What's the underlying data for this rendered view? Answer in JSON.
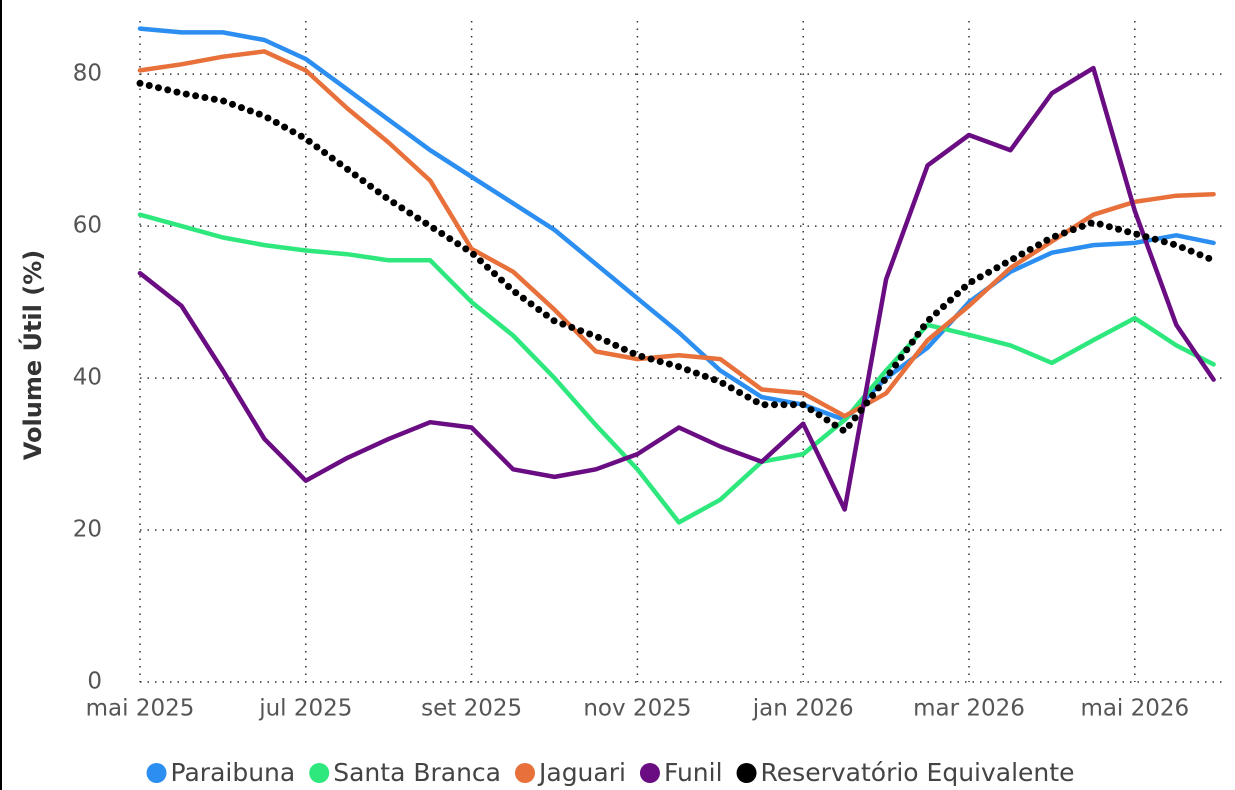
{
  "chart_data": {
    "type": "line",
    "y_label": "Volume Útil (%)",
    "x": [
      0,
      0.5,
      1,
      1.5,
      2,
      2.5,
      3,
      3.5,
      4,
      4.5,
      5,
      5.5,
      6,
      6.5,
      7,
      7.5,
      8,
      8.5,
      9,
      9.5,
      10,
      10.5,
      11,
      11.5,
      12,
      12.5,
      12.95
    ],
    "series": [
      {
        "name": "Paraibuna",
        "color": "#2b8ef0",
        "values": [
          86,
          85.5,
          85.5,
          84.5,
          82,
          78,
          74,
          70,
          66.5,
          63,
          59.5,
          55,
          50.5,
          46,
          41,
          37.5,
          36.5,
          34.5,
          40,
          44,
          50,
          54,
          56.5,
          57.5,
          57.8,
          58.8,
          57.8
        ]
      },
      {
        "name": "Santa Branca",
        "color": "#2ee87e",
        "values": [
          61.5,
          60,
          58.5,
          57.5,
          56.8,
          56.3,
          55.5,
          55.5,
          50,
          45.6,
          40,
          33.8,
          28,
          21,
          24,
          29,
          30,
          34.5,
          41,
          47,
          45.7,
          44.3,
          42,
          45,
          47.9,
          44.3,
          41.8
        ]
      },
      {
        "name": "Jaguari",
        "color": "#e8703a",
        "values": [
          80.5,
          81.3,
          82.3,
          83,
          80.5,
          75.5,
          71,
          66,
          57,
          54,
          49,
          43.5,
          42.5,
          43,
          42.5,
          38.5,
          38,
          35,
          38,
          45,
          49.5,
          54.5,
          58,
          61.5,
          63.2,
          64,
          64.2
        ]
      },
      {
        "name": "Funil",
        "color": "#6a0d83",
        "values": [
          53.8,
          49.5,
          41,
          32,
          26.5,
          29.5,
          32,
          34.2,
          33.5,
          28,
          27,
          28,
          30,
          33.5,
          31,
          29,
          34,
          22.7,
          53,
          68,
          72,
          70,
          77.5,
          80.8,
          62,
          47,
          39.8
        ]
      },
      {
        "name": "Reservatório Equivalente",
        "color": "#000000",
        "dotted": true,
        "values": [
          78.8,
          77.5,
          76.5,
          74.5,
          71.5,
          67.5,
          63.5,
          60,
          56.5,
          51.5,
          47.5,
          45.5,
          43,
          41.5,
          39.5,
          36.5,
          36.5,
          33,
          40,
          47.5,
          52.5,
          55.5,
          58.5,
          60.5,
          59,
          57.5,
          55.5
        ]
      }
    ],
    "xlim": [
      -0.25,
      13.1
    ],
    "xticks": [
      {
        "value": 0,
        "label": "mai 2025"
      },
      {
        "value": 2,
        "label": "jul 2025"
      },
      {
        "value": 4,
        "label": "set 2025"
      },
      {
        "value": 6,
        "label": "nov 2025"
      },
      {
        "value": 8,
        "label": "jan 2026"
      },
      {
        "value": 10,
        "label": "mar 2026"
      },
      {
        "value": 12,
        "label": "mai 2026"
      }
    ],
    "ylim": [
      0,
      87
    ],
    "yticks": [
      0,
      20,
      40,
      60,
      80
    ],
    "grid": true,
    "legend": "bottom"
  }
}
